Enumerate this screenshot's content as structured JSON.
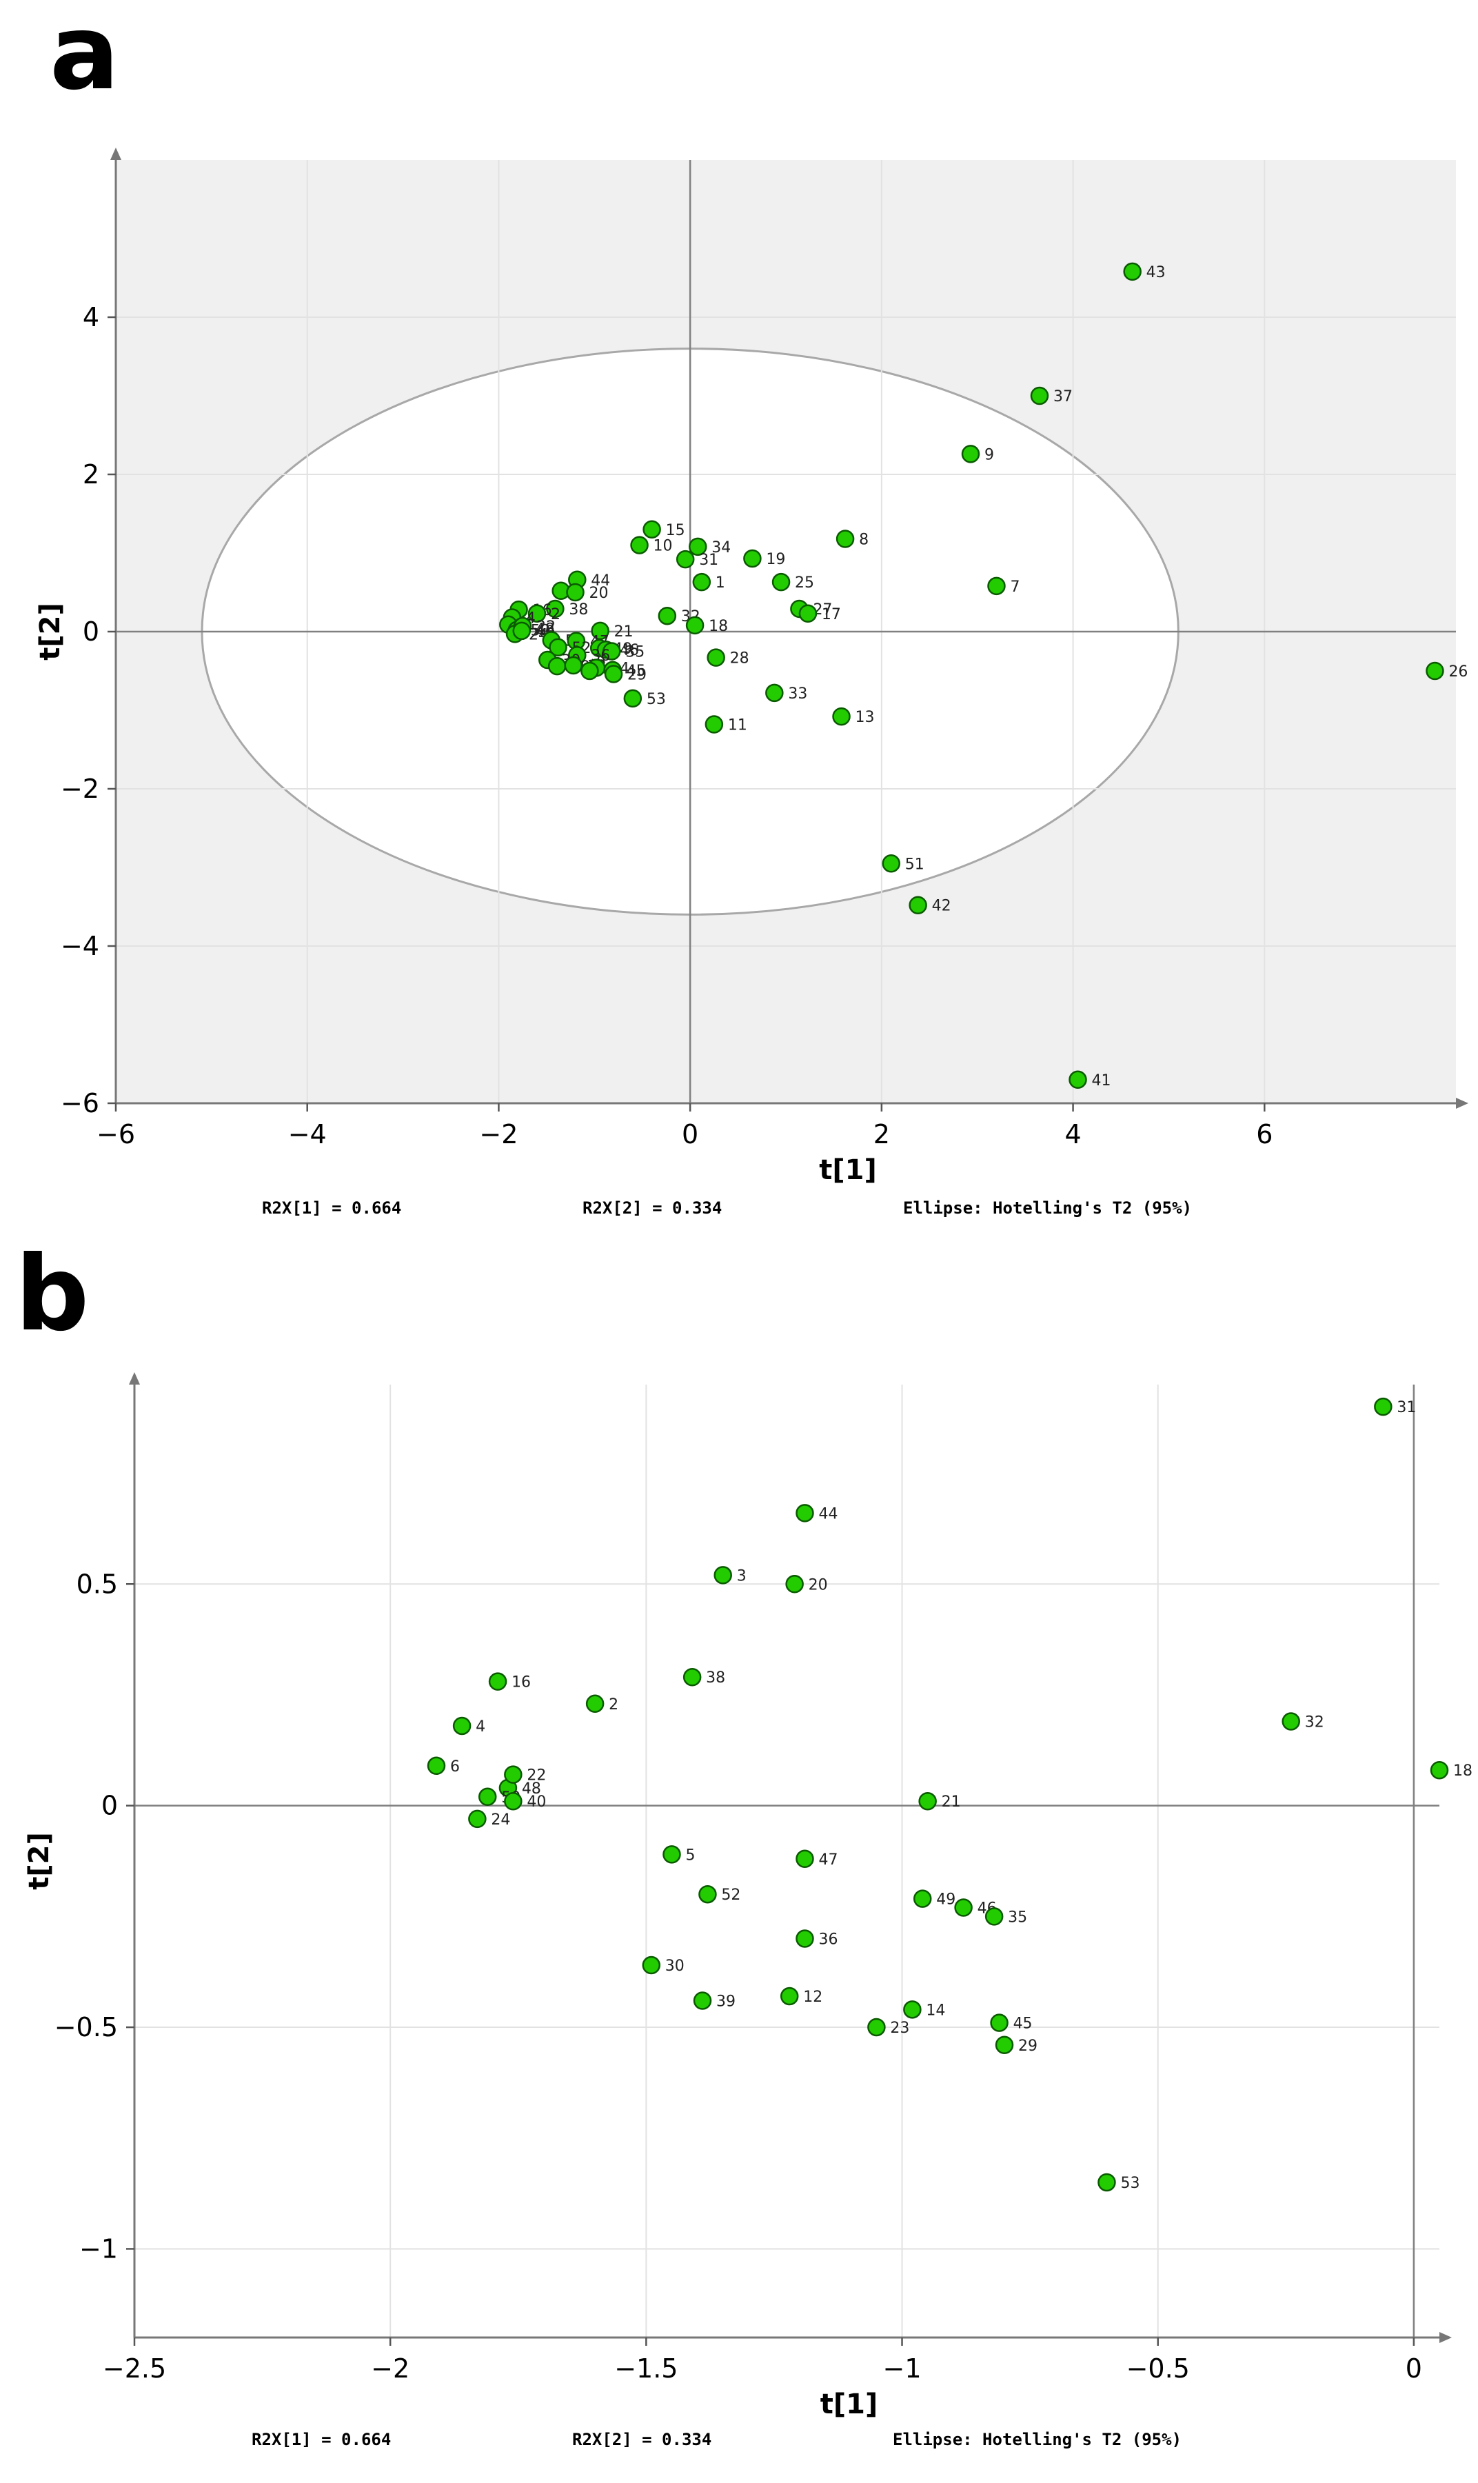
{
  "panels": [
    {
      "letter": "a",
      "chart_data": {
        "type": "scatter",
        "xlabel": "t[1]",
        "ylabel": "t[2]",
        "xlim": [
          -6,
          8
        ],
        "ylim": [
          -6,
          6
        ],
        "xticks": [
          -6,
          -4,
          -2,
          0,
          2,
          4,
          6
        ],
        "yticks": [
          -6,
          -4,
          -2,
          0,
          2,
          4
        ],
        "tick_labels_x": [
          "−6",
          "−4",
          "−2",
          "0",
          "2",
          "4",
          "6"
        ],
        "tick_labels_y": [
          "−6",
          "−4",
          "−2",
          "0",
          "2",
          "4"
        ],
        "ellipse": {
          "center": [
            0,
            0
          ],
          "rx": 5.1,
          "ry": 3.6
        },
        "grid": true,
        "marker_color": "#22cc00",
        "points": [
          {
            "id": "43",
            "x": 4.62,
            "y": 4.58
          },
          {
            "id": "37",
            "x": 3.65,
            "y": 3.0
          },
          {
            "id": "9",
            "x": 2.93,
            "y": 2.26
          },
          {
            "id": "8",
            "x": 1.62,
            "y": 1.18
          },
          {
            "id": "7",
            "x": 3.2,
            "y": 0.58
          },
          {
            "id": "15",
            "x": -0.4,
            "y": 1.3
          },
          {
            "id": "10",
            "x": -0.53,
            "y": 1.1
          },
          {
            "id": "34",
            "x": 0.08,
            "y": 1.08
          },
          {
            "id": "31",
            "x": -0.05,
            "y": 0.92
          },
          {
            "id": "19",
            "x": 0.65,
            "y": 0.93
          },
          {
            "id": "1",
            "x": 0.12,
            "y": 0.63
          },
          {
            "id": "25",
            "x": 0.95,
            "y": 0.63
          },
          {
            "id": "27",
            "x": 1.14,
            "y": 0.29
          },
          {
            "id": "17",
            "x": 1.23,
            "y": 0.23
          },
          {
            "id": "32",
            "x": -0.24,
            "y": 0.2
          },
          {
            "id": "18",
            "x": 0.05,
            "y": 0.08
          },
          {
            "id": "28",
            "x": 0.27,
            "y": -0.33
          },
          {
            "id": "33",
            "x": 0.88,
            "y": -0.78
          },
          {
            "id": "11",
            "x": 0.25,
            "y": -1.18
          },
          {
            "id": "13",
            "x": 1.58,
            "y": -1.08
          },
          {
            "id": "26",
            "x": 7.78,
            "y": -0.5
          },
          {
            "id": "51",
            "x": 2.1,
            "y": -2.95
          },
          {
            "id": "42",
            "x": 2.38,
            "y": -3.48
          },
          {
            "id": "41",
            "x": 4.05,
            "y": -5.7
          },
          {
            "id": "3",
            "x": -1.35,
            "y": 0.52
          },
          {
            "id": "44",
            "x": -1.18,
            "y": 0.66
          },
          {
            "id": "20",
            "x": -1.2,
            "y": 0.5
          },
          {
            "id": "38",
            "x": -1.41,
            "y": 0.29
          },
          {
            "id": "16",
            "x": -1.79,
            "y": 0.28
          },
          {
            "id": "2",
            "x": -1.6,
            "y": 0.23
          },
          {
            "id": "4",
            "x": -1.86,
            "y": 0.18
          },
          {
            "id": "6",
            "x": -1.9,
            "y": 0.09
          },
          {
            "id": "50",
            "x": -1.81,
            "y": 0.02
          },
          {
            "id": "48",
            "x": -1.76,
            "y": 0.04
          },
          {
            "id": "22",
            "x": -1.75,
            "y": 0.07
          },
          {
            "id": "24",
            "x": -1.83,
            "y": -0.03
          },
          {
            "id": "40",
            "x": -1.76,
            "y": 0.01
          },
          {
            "id": "21",
            "x": -0.94,
            "y": 0.01
          },
          {
            "id": "5",
            "x": -1.45,
            "y": -0.11
          },
          {
            "id": "47",
            "x": -1.19,
            "y": -0.12
          },
          {
            "id": "52",
            "x": -1.38,
            "y": -0.2
          },
          {
            "id": "49",
            "x": -0.95,
            "y": -0.21
          },
          {
            "id": "46",
            "x": -0.88,
            "y": -0.23
          },
          {
            "id": "35",
            "x": -0.82,
            "y": -0.25
          },
          {
            "id": "36",
            "x": -1.18,
            "y": -0.3
          },
          {
            "id": "30",
            "x": -1.49,
            "y": -0.36
          },
          {
            "id": "39",
            "x": -1.39,
            "y": -0.44
          },
          {
            "id": "12",
            "x": -1.22,
            "y": -0.43
          },
          {
            "id": "14",
            "x": -0.98,
            "y": -0.46
          },
          {
            "id": "23",
            "x": -1.05,
            "y": -0.5
          },
          {
            "id": "45",
            "x": -0.81,
            "y": -0.49
          },
          {
            "id": "29",
            "x": -0.8,
            "y": -0.54
          },
          {
            "id": "53",
            "x": -0.6,
            "y": -0.85
          }
        ]
      },
      "footer": {
        "r2x1": "R2X[1] = 0.664",
        "r2x2": "R2X[2] = 0.334",
        "ellipse": "Ellipse: Hotelling's T2 (95%)"
      }
    },
    {
      "letter": "b",
      "chart_data": {
        "type": "scatter",
        "xlabel": "t[1]",
        "ylabel": "t[2]",
        "xlim": [
          -2.5,
          0.05
        ],
        "ylim": [
          -1.2,
          0.95
        ],
        "xticks": [
          -2.5,
          -2,
          -1.5,
          -1,
          -0.5,
          0
        ],
        "yticks": [
          -1,
          -0.5,
          0,
          0.5
        ],
        "tick_labels_x": [
          "−2.5",
          "−2",
          "−1.5",
          "−1",
          "−0.5",
          "0"
        ],
        "tick_labels_y": [
          "−1",
          "−0.5",
          "0",
          "0.5"
        ],
        "grid": true,
        "marker_color": "#22cc00",
        "points": [
          {
            "id": "31",
            "x": -0.06,
            "y": 0.9
          },
          {
            "id": "44",
            "x": -1.19,
            "y": 0.66
          },
          {
            "id": "3",
            "x": -1.35,
            "y": 0.52
          },
          {
            "id": "20",
            "x": -1.21,
            "y": 0.5
          },
          {
            "id": "38",
            "x": -1.41,
            "y": 0.29
          },
          {
            "id": "16",
            "x": -1.79,
            "y": 0.28
          },
          {
            "id": "2",
            "x": -1.6,
            "y": 0.23
          },
          {
            "id": "4",
            "x": -1.86,
            "y": 0.18
          },
          {
            "id": "32",
            "x": -0.24,
            "y": 0.19
          },
          {
            "id": "18",
            "x": 0.05,
            "y": 0.08
          },
          {
            "id": "6",
            "x": -1.91,
            "y": 0.09
          },
          {
            "id": "48",
            "x": -1.77,
            "y": 0.04
          },
          {
            "id": "22",
            "x": -1.76,
            "y": 0.07
          },
          {
            "id": "50",
            "x": -1.81,
            "y": 0.02
          },
          {
            "id": "24",
            "x": -1.83,
            "y": -0.03
          },
          {
            "id": "40",
            "x": -1.76,
            "y": 0.01
          },
          {
            "id": "21",
            "x": -0.95,
            "y": 0.01
          },
          {
            "id": "5",
            "x": -1.45,
            "y": -0.11
          },
          {
            "id": "47",
            "x": -1.19,
            "y": -0.12
          },
          {
            "id": "52",
            "x": -1.38,
            "y": -0.2
          },
          {
            "id": "49",
            "x": -0.96,
            "y": -0.21
          },
          {
            "id": "46",
            "x": -0.88,
            "y": -0.23
          },
          {
            "id": "35",
            "x": -0.82,
            "y": -0.25
          },
          {
            "id": "36",
            "x": -1.19,
            "y": -0.3
          },
          {
            "id": "30",
            "x": -1.49,
            "y": -0.36
          },
          {
            "id": "39",
            "x": -1.39,
            "y": -0.44
          },
          {
            "id": "12",
            "x": -1.22,
            "y": -0.43
          },
          {
            "id": "14",
            "x": -0.98,
            "y": -0.46
          },
          {
            "id": "23",
            "x": -1.05,
            "y": -0.5
          },
          {
            "id": "45",
            "x": -0.81,
            "y": -0.49
          },
          {
            "id": "29",
            "x": -0.8,
            "y": -0.54
          },
          {
            "id": "53",
            "x": -0.6,
            "y": -0.85
          }
        ]
      },
      "footer": {
        "r2x1": "R2X[1] = 0.664",
        "r2x2": "R2X[2] = 0.334",
        "ellipse": "Ellipse: Hotelling's T2 (95%)"
      }
    }
  ]
}
